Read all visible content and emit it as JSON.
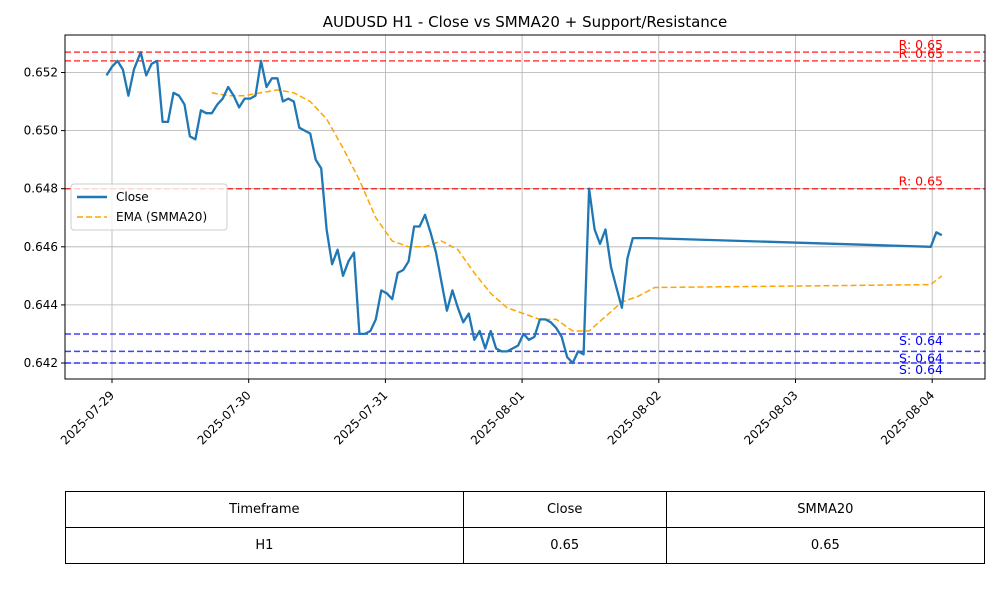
{
  "chart_data": {
    "type": "line",
    "title": "AUDUSD H1 - Close vs SMMA20 + Support/Resistance",
    "xlabel": "",
    "ylabel": "",
    "ylim": [
      0.6415,
      0.6532
    ],
    "x_ticks": [
      "2025-07-29",
      "2025-07-30",
      "2025-07-31",
      "2025-08-01",
      "2025-08-02",
      "2025-08-03",
      "2025-08-04"
    ],
    "y_ticks": [
      "0.642",
      "0.644",
      "0.646",
      "0.648",
      "0.650",
      "0.652"
    ],
    "grid": true,
    "legend_position": "center-left",
    "series": [
      {
        "name": "Close",
        "style": "solid",
        "color": "#1f77b4",
        "x": [
          -0.04,
          0.0,
          0.04,
          0.08,
          0.12,
          0.16,
          0.21,
          0.25,
          0.29,
          0.33,
          0.37,
          0.41,
          0.45,
          0.49,
          0.53,
          0.57,
          0.61,
          0.65,
          0.69,
          0.73,
          0.77,
          0.81,
          0.85,
          0.89,
          0.93,
          0.97,
          1.01,
          1.05,
          1.09,
          1.13,
          1.17,
          1.21,
          1.25,
          1.29,
          1.33,
          1.37,
          1.41,
          1.45,
          1.49,
          1.53,
          1.57,
          1.61,
          1.65,
          1.69,
          1.73,
          1.77,
          1.81,
          1.85,
          1.89,
          1.93,
          1.97,
          2.01,
          2.05,
          2.09,
          2.13,
          2.17,
          2.21,
          2.25,
          2.29,
          2.33,
          2.37,
          2.41,
          2.45,
          2.49,
          2.53,
          2.57,
          2.61,
          2.65,
          2.69,
          2.73,
          2.77,
          2.81,
          2.85,
          2.89,
          2.93,
          2.97,
          3.01,
          3.05,
          3.09,
          3.13,
          3.17,
          3.21,
          3.25,
          3.29,
          3.33,
          3.37,
          3.41,
          3.45,
          3.49,
          3.53,
          3.57,
          3.61,
          3.65,
          3.69,
          3.73,
          3.77,
          3.81,
          3.85,
          3.89,
          3.93,
          5.99,
          6.03,
          6.07
        ],
        "values": [
          0.6519,
          0.6522,
          0.6524,
          0.6521,
          0.6512,
          0.6521,
          0.6527,
          0.6519,
          0.6523,
          0.6524,
          0.6503,
          0.6503,
          0.6513,
          0.6512,
          0.6509,
          0.6498,
          0.6497,
          0.6507,
          0.6506,
          0.6506,
          0.6509,
          0.6511,
          0.6515,
          0.6512,
          0.6508,
          0.6511,
          0.6511,
          0.6512,
          0.6524,
          0.6515,
          0.6518,
          0.6518,
          0.651,
          0.6511,
          0.651,
          0.6501,
          0.65,
          0.6499,
          0.649,
          0.6487,
          0.6466,
          0.6454,
          0.6459,
          0.645,
          0.6455,
          0.6458,
          0.643,
          0.643,
          0.6431,
          0.6435,
          0.6445,
          0.6444,
          0.6442,
          0.6451,
          0.6452,
          0.6455,
          0.6467,
          0.6467,
          0.6471,
          0.6465,
          0.6458,
          0.6448,
          0.6438,
          0.6445,
          0.6439,
          0.6434,
          0.6437,
          0.6428,
          0.6431,
          0.6425,
          0.6431,
          0.6425,
          0.6424,
          0.6424,
          0.6425,
          0.6426,
          0.643,
          0.6428,
          0.6429,
          0.6435,
          0.6435,
          0.6434,
          0.6432,
          0.6429,
          0.6422,
          0.642,
          0.6424,
          0.6423,
          0.648,
          0.6466,
          0.6461,
          0.6466,
          0.6453,
          0.6446,
          0.6439,
          0.6456,
          0.6463,
          0.6463,
          0.6463,
          0.6463,
          0.646,
          0.6465,
          0.6464
        ]
      },
      {
        "name": "EMA (SMMA20)",
        "style": "dashed",
        "color": "#ffa500",
        "x": [
          0.73,
          0.85,
          0.97,
          1.09,
          1.21,
          1.33,
          1.45,
          1.57,
          1.69,
          1.81,
          1.93,
          2.05,
          2.17,
          2.29,
          2.41,
          2.53,
          2.65,
          2.77,
          2.89,
          3.01,
          3.13,
          3.25,
          3.37,
          3.49,
          3.61,
          3.73,
          3.85,
          3.97,
          5.99,
          6.07
        ],
        "values": [
          0.6513,
          0.6512,
          0.6512,
          0.6513,
          0.6514,
          0.6513,
          0.651,
          0.6504,
          0.6494,
          0.6483,
          0.647,
          0.6462,
          0.646,
          0.646,
          0.6462,
          0.6459,
          0.6451,
          0.6444,
          0.6439,
          0.6437,
          0.6435,
          0.6435,
          0.6431,
          0.6431,
          0.6436,
          0.6441,
          0.6443,
          0.6446,
          0.6447,
          0.645
        ]
      }
    ],
    "resistance_lines": [
      0.6527,
      0.6524,
      0.648
    ],
    "support_lines": [
      0.643,
      0.6424,
      0.642
    ],
    "annotations": {
      "resistance_label": "R: 0.65",
      "support_label": "S: 0.64"
    },
    "colors": {
      "close": "#1f77b4",
      "smma": "#ffa500",
      "resistance": "#ff0000",
      "support": "#0000ff"
    }
  },
  "table": {
    "headers": [
      "Timeframe",
      "Close",
      "SMMA20"
    ],
    "row": [
      "H1",
      "0.65",
      "0.65"
    ]
  }
}
